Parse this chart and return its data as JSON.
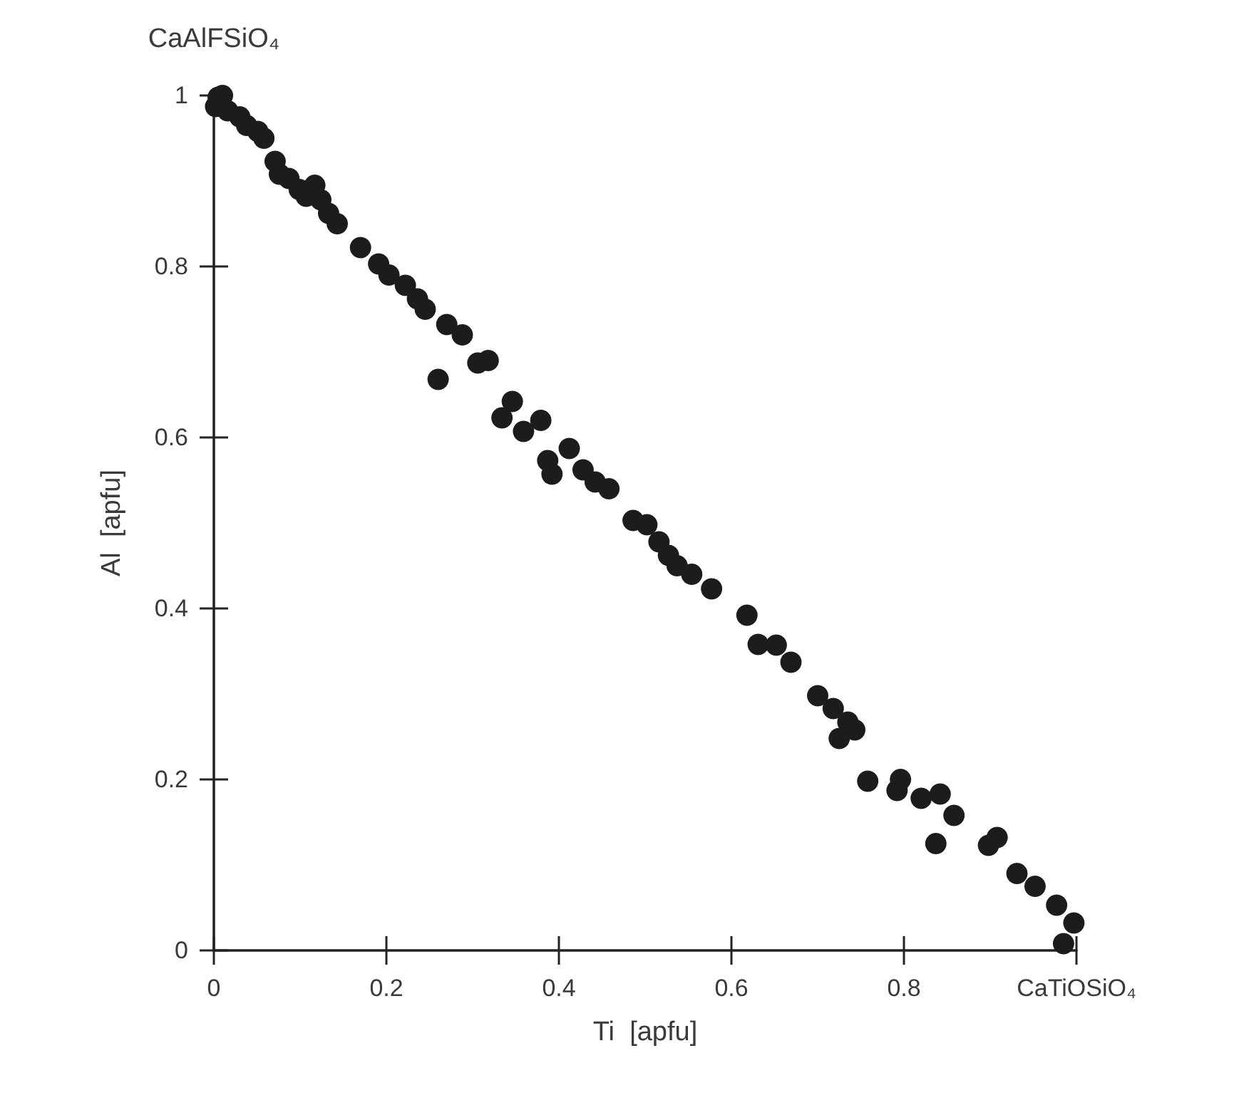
{
  "chart_data": {
    "type": "scatter",
    "xlabel": "Ti  [apfu]",
    "ylabel": "Al  [apfu]",
    "annotations": [
      {
        "text": "CaAlFSiO₄",
        "x": 0,
        "y": 1
      }
    ],
    "xlim": [
      0,
      1
    ],
    "ylim": [
      0,
      1
    ],
    "xticks": [
      0,
      0.2,
      0.4,
      0.6,
      0.8,
      {
        "value": 1,
        "label": "CaTiOSiO₄"
      }
    ],
    "yticks": [
      0,
      0.2,
      0.4,
      0.6,
      0.8,
      1
    ],
    "grid": false,
    "marker": "circle",
    "series": [
      {
        "color": "#1c1c1c",
        "x": [
          0.005,
          0.002,
          0.01,
          0.016,
          0.03,
          0.038,
          0.051,
          0.058,
          0.071,
          0.076,
          0.087,
          0.099,
          0.107,
          0.117,
          0.124,
          0.133,
          0.143,
          0.17,
          0.191,
          0.203,
          0.222,
          0.236,
          0.245,
          0.26,
          0.27,
          0.288,
          0.306,
          0.318,
          0.334,
          0.346,
          0.359,
          0.379,
          0.387,
          0.392,
          0.412,
          0.428,
          0.442,
          0.458,
          0.486,
          0.502,
          0.516,
          0.527,
          0.537,
          0.554,
          0.577,
          0.618,
          0.631,
          0.652,
          0.669,
          0.7,
          0.718,
          0.725,
          0.735,
          0.743,
          0.758,
          0.792,
          0.796,
          0.82,
          0.842,
          0.858,
          0.837,
          0.898,
          0.908,
          0.931,
          0.952,
          0.977,
          0.997,
          0.985
        ],
        "values": [
          0.998,
          0.987,
          1.0,
          0.982,
          0.975,
          0.965,
          0.958,
          0.95,
          0.923,
          0.908,
          0.903,
          0.89,
          0.882,
          0.895,
          0.878,
          0.862,
          0.85,
          0.822,
          0.803,
          0.79,
          0.778,
          0.762,
          0.75,
          0.668,
          0.732,
          0.72,
          0.687,
          0.69,
          0.623,
          0.642,
          0.607,
          0.62,
          0.573,
          0.557,
          0.587,
          0.562,
          0.548,
          0.54,
          0.503,
          0.498,
          0.478,
          0.462,
          0.45,
          0.44,
          0.423,
          0.392,
          0.358,
          0.357,
          0.337,
          0.298,
          0.283,
          0.248,
          0.267,
          0.258,
          0.198,
          0.187,
          0.2,
          0.178,
          0.183,
          0.158,
          0.125,
          0.123,
          0.132,
          0.09,
          0.075,
          0.053,
          0.032,
          0.008
        ]
      }
    ]
  }
}
